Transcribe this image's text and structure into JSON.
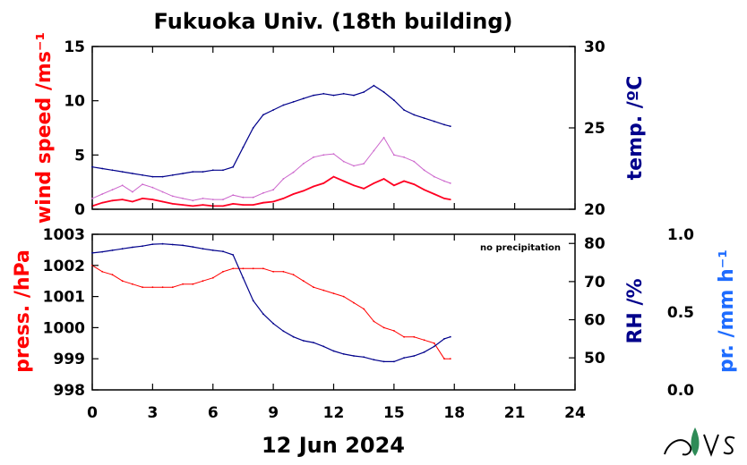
{
  "chart_data": [
    {
      "type": "line",
      "title": "Fukuoka Univ. (18th building)",
      "x_ticks": [
        "0",
        "3",
        "6",
        "9",
        "12",
        "15",
        "18",
        "21",
        "24"
      ],
      "xlim": [
        0,
        24
      ],
      "ylabel_left": "wind speed /ms⁻¹",
      "ylabel_right": "temp. /ºC",
      "y_left_ticks": [
        "0",
        "5",
        "10",
        "15"
      ],
      "y_left_lim": [
        0,
        15
      ],
      "y_right_ticks": [
        "20",
        "25",
        "30"
      ],
      "y_right_lim": [
        20,
        30
      ],
      "colors": {
        "wind": "#ff0022",
        "gust": "#cc66cc",
        "temp": "#00008b"
      },
      "series": [
        {
          "axis": "left",
          "x": [
            0,
            0.5,
            1,
            1.5,
            2,
            2.5,
            3,
            3.5,
            4,
            4.5,
            5,
            5.5,
            6,
            6.5,
            7,
            7.5,
            8,
            8.5,
            9,
            9.5,
            10,
            10.5,
            11,
            11.5,
            12,
            12.5,
            13,
            13.5,
            14,
            14.5,
            15,
            15.5,
            16,
            16.5,
            17,
            17.5,
            17.8
          ],
          "values": [
            0.3,
            0.6,
            0.8,
            0.9,
            0.7,
            1.0,
            0.9,
            0.7,
            0.5,
            0.4,
            0.3,
            0.4,
            0.3,
            0.3,
            0.5,
            0.4,
            0.4,
            0.6,
            0.7,
            1.0,
            1.4,
            1.7,
            2.1,
            2.4,
            3.0,
            2.6,
            2.2,
            1.9,
            2.4,
            2.8,
            2.2,
            2.6,
            2.3,
            1.8,
            1.4,
            1.0,
            0.9
          ]
        },
        {
          "axis": "left",
          "x": [
            0,
            0.5,
            1,
            1.5,
            2,
            2.5,
            3,
            3.5,
            4,
            4.5,
            5,
            5.5,
            6,
            6.5,
            7,
            7.5,
            8,
            8.5,
            9,
            9.5,
            10,
            10.5,
            11,
            11.5,
            12,
            12.5,
            13,
            13.5,
            14,
            14.5,
            15,
            15.5,
            16,
            16.5,
            17,
            17.5,
            17.8
          ],
          "values": [
            1.0,
            1.4,
            1.8,
            2.2,
            1.6,
            2.3,
            2.0,
            1.6,
            1.2,
            1.0,
            0.8,
            1.0,
            0.9,
            0.9,
            1.3,
            1.1,
            1.1,
            1.5,
            1.8,
            2.8,
            3.4,
            4.2,
            4.8,
            5.0,
            5.1,
            4.4,
            4.0,
            4.2,
            5.4,
            6.6,
            5.0,
            4.8,
            4.4,
            3.6,
            3.0,
            2.6,
            2.4
          ]
        },
        {
          "axis": "right",
          "x": [
            0,
            0.5,
            1,
            1.5,
            2,
            2.5,
            3,
            3.5,
            4,
            4.5,
            5,
            5.5,
            6,
            6.5,
            7,
            7.5,
            8,
            8.5,
            9,
            9.5,
            10,
            10.5,
            11,
            11.5,
            12,
            12.5,
            13,
            13.5,
            14,
            14.5,
            15,
            15.5,
            16,
            16.5,
            17,
            17.5,
            17.8
          ],
          "values": [
            22.6,
            22.5,
            22.4,
            22.3,
            22.2,
            22.1,
            22.0,
            22.0,
            22.1,
            22.2,
            22.3,
            22.3,
            22.4,
            22.4,
            22.6,
            23.8,
            25.0,
            25.8,
            26.1,
            26.4,
            26.6,
            26.8,
            27.0,
            27.1,
            27.0,
            27.1,
            27.0,
            27.2,
            27.6,
            27.2,
            26.7,
            26.1,
            25.8,
            25.6,
            25.4,
            25.2,
            25.1
          ]
        }
      ]
    },
    {
      "type": "line",
      "x_ticks": [
        "0",
        "3",
        "6",
        "9",
        "12",
        "15",
        "18",
        "21",
        "24"
      ],
      "xlim": [
        0,
        24
      ],
      "xlabel": "12 Jun 2024",
      "ylabel_left": "press. /hPa",
      "ylabel_right": "RH /%",
      "ylabel_far_right": "pr. /mm h⁻¹",
      "annotation": "no precipitation",
      "y_left_ticks": [
        "998",
        "999",
        "1000",
        "1001",
        "1002",
        "1003"
      ],
      "y_left_lim": [
        998,
        1003
      ],
      "y_right_ticks": [
        "50",
        "60",
        "70",
        "80"
      ],
      "y_right_lim": [
        41.6,
        82.4
      ],
      "y_far_right_ticks": [
        "0.0",
        "0.5",
        "1.0"
      ],
      "y_far_right_lim": [
        0,
        1
      ],
      "colors": {
        "press": "#ff0000",
        "rh": "#00008b",
        "precip": "#1e6cff"
      },
      "series": [
        {
          "axis": "left",
          "x": [
            0,
            0.5,
            1,
            1.5,
            2,
            2.5,
            3,
            3.5,
            4,
            4.5,
            5,
            5.5,
            6,
            6.5,
            7,
            7.5,
            8,
            8.5,
            9,
            9.5,
            10,
            10.5,
            11,
            11.5,
            12,
            12.5,
            13,
            13.5,
            14,
            14.5,
            15,
            15.5,
            16,
            16.5,
            17,
            17.5,
            17.8
          ],
          "values": [
            1002.0,
            1001.8,
            1001.7,
            1001.5,
            1001.4,
            1001.3,
            1001.3,
            1001.3,
            1001.3,
            1001.4,
            1001.4,
            1001.5,
            1001.6,
            1001.8,
            1001.9,
            1001.9,
            1001.9,
            1001.9,
            1001.8,
            1001.8,
            1001.7,
            1001.5,
            1001.3,
            1001.2,
            1001.1,
            1001.0,
            1000.8,
            1000.6,
            1000.2,
            1000.0,
            999.9,
            999.7,
            999.7,
            999.6,
            999.5,
            999.0,
            999.0
          ]
        },
        {
          "axis": "right",
          "x": [
            0,
            0.5,
            1,
            1.5,
            2,
            2.5,
            3,
            3.5,
            4,
            4.5,
            5,
            5.5,
            6,
            6.5,
            7,
            7.5,
            8,
            8.5,
            9,
            9.5,
            10,
            10.5,
            11,
            11.5,
            12,
            12.5,
            13,
            13.5,
            14,
            14.5,
            15,
            15.5,
            16,
            16.5,
            17,
            17.5,
            17.8
          ],
          "values": [
            77.5,
            77.8,
            78.2,
            78.6,
            79.0,
            79.3,
            79.8,
            79.9,
            79.7,
            79.5,
            79.1,
            78.6,
            78.2,
            77.9,
            77.0,
            71.0,
            65.0,
            61.5,
            59.0,
            57.0,
            55.5,
            54.5,
            54.0,
            53.0,
            51.8,
            51.0,
            50.5,
            50.2,
            49.5,
            49.0,
            49.0,
            50.0,
            50.5,
            51.5,
            53.0,
            55.0,
            55.5
          ]
        }
      ]
    }
  ]
}
